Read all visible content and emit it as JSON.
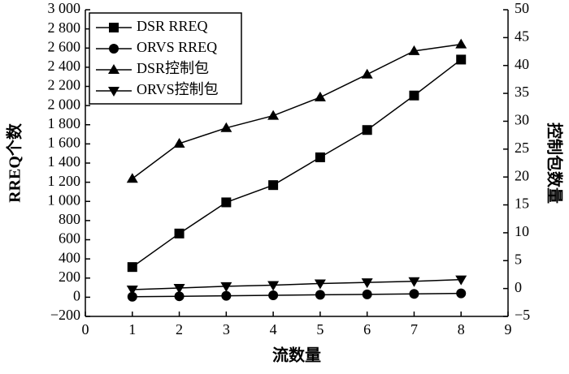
{
  "chart_data": {
    "type": "line",
    "x_label": "流数量",
    "y_label": "RREQ个数",
    "y2_label": "控制包数量",
    "x": [
      1,
      2,
      3,
      4,
      5,
      6,
      7,
      8
    ],
    "xlim": [
      0,
      9
    ],
    "xticks": [
      0,
      1,
      2,
      3,
      4,
      5,
      6,
      7,
      8,
      9
    ],
    "ylim": [
      -200,
      3000
    ],
    "yticks": [
      {
        "value": -200,
        "label": "−200"
      },
      0,
      200,
      400,
      600,
      800,
      {
        "value": 1000,
        "label": "1 000"
      },
      {
        "value": 1200,
        "label": "1 200"
      },
      {
        "value": 1400,
        "label": "1 400"
      },
      {
        "value": 1600,
        "label": "1 600"
      },
      {
        "value": 1800,
        "label": "1 800"
      },
      {
        "value": 2000,
        "label": "2 000"
      },
      {
        "value": 2200,
        "label": "2 200"
      },
      {
        "value": 2400,
        "label": "2 400"
      },
      {
        "value": 2600,
        "label": "2 600"
      },
      {
        "value": 2800,
        "label": "2 800"
      },
      {
        "value": 3000,
        "label": "3 000"
      }
    ],
    "y2lim": [
      -5,
      50
    ],
    "y2ticks": [
      {
        "value": -5,
        "label": "−5"
      },
      0,
      5,
      10,
      15,
      20,
      25,
      30,
      35,
      40,
      45,
      50
    ],
    "legend": "upper left",
    "series": [
      {
        "name": "DSR RREQ",
        "color": "#000000",
        "marker": "square",
        "values": [
          315,
          665,
          990,
          1170,
          1460,
          1745,
          2105,
          2480
        ]
      },
      {
        "name": "ORVS RREQ",
        "color": "#000000",
        "marker": "circle",
        "values": [
          5,
          10,
          15,
          20,
          25,
          30,
          35,
          40
        ]
      },
      {
        "name": "DSR控制包",
        "color": "#000000",
        "marker": "triangle-up",
        "axis": "y2",
        "values": [
          19.7,
          26,
          28.8,
          31,
          34.3,
          38.4,
          42.6,
          43.8
        ]
      },
      {
        "name": "ORVS控制包",
        "color": "#000000",
        "marker": "triangle-down",
        "axis": "y2",
        "values": [
          -0.2,
          0.1,
          0.4,
          0.6,
          0.9,
          1.1,
          1.3,
          1.6
        ]
      }
    ]
  }
}
